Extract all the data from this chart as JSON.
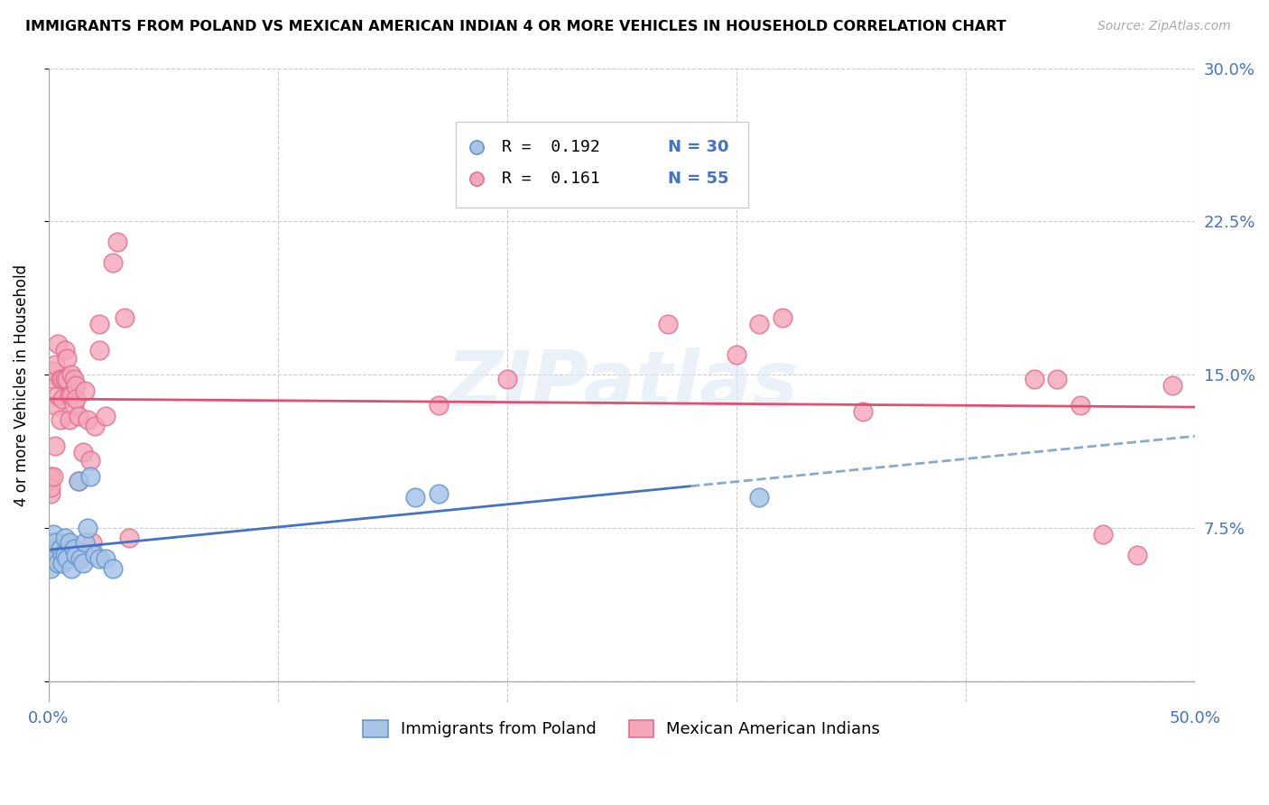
{
  "title": "IMMIGRANTS FROM POLAND VS MEXICAN AMERICAN INDIAN 4 OR MORE VEHICLES IN HOUSEHOLD CORRELATION CHART",
  "source": "Source: ZipAtlas.com",
  "ylabel": "4 or more Vehicles in Household",
  "xlim": [
    0.0,
    0.5
  ],
  "ylim": [
    -0.01,
    0.3
  ],
  "plot_ylim": [
    0.0,
    0.3
  ],
  "xticks": [
    0.0,
    0.1,
    0.2,
    0.3,
    0.4,
    0.5
  ],
  "yticks": [
    0.0,
    0.075,
    0.15,
    0.225,
    0.3
  ],
  "grid_color": "#cccccc",
  "poland_color": "#aac4e8",
  "mexico_color": "#f4a7b9",
  "poland_edge": "#6699cc",
  "mexico_edge": "#e07090",
  "legend_r_poland": "R =  0.192",
  "legend_n_poland": "N = 30",
  "legend_r_mexico": "R =  0.161",
  "legend_n_mexico": "N = 55",
  "line_poland_color": "#4472c4",
  "line_poland_dash_color": "#88aacc",
  "line_mexico_color": "#e05070",
  "watermark": "ZIPatlas",
  "poland_x": [
    0.001,
    0.001,
    0.002,
    0.002,
    0.003,
    0.003,
    0.004,
    0.005,
    0.006,
    0.006,
    0.007,
    0.007,
    0.008,
    0.009,
    0.01,
    0.011,
    0.012,
    0.013,
    0.014,
    0.015,
    0.016,
    0.017,
    0.018,
    0.02,
    0.022,
    0.025,
    0.028,
    0.16,
    0.17,
    0.31
  ],
  "poland_y": [
    0.06,
    0.055,
    0.072,
    0.065,
    0.068,
    0.06,
    0.058,
    0.065,
    0.062,
    0.058,
    0.07,
    0.062,
    0.06,
    0.068,
    0.055,
    0.065,
    0.062,
    0.098,
    0.06,
    0.058,
    0.068,
    0.075,
    0.1,
    0.062,
    0.06,
    0.06,
    0.055,
    0.09,
    0.092,
    0.09
  ],
  "mexico_x": [
    0.001,
    0.001,
    0.001,
    0.002,
    0.002,
    0.002,
    0.003,
    0.003,
    0.003,
    0.004,
    0.004,
    0.005,
    0.005,
    0.006,
    0.006,
    0.007,
    0.007,
    0.008,
    0.008,
    0.009,
    0.009,
    0.01,
    0.01,
    0.011,
    0.011,
    0.012,
    0.012,
    0.013,
    0.013,
    0.015,
    0.016,
    0.017,
    0.018,
    0.019,
    0.02,
    0.022,
    0.022,
    0.025,
    0.028,
    0.03,
    0.033,
    0.035,
    0.17,
    0.2,
    0.27,
    0.3,
    0.31,
    0.32,
    0.355,
    0.43,
    0.44,
    0.45,
    0.46,
    0.475,
    0.49
  ],
  "mexico_y": [
    0.1,
    0.092,
    0.095,
    0.148,
    0.152,
    0.1,
    0.135,
    0.115,
    0.155,
    0.165,
    0.14,
    0.148,
    0.128,
    0.148,
    0.138,
    0.162,
    0.148,
    0.158,
    0.148,
    0.14,
    0.128,
    0.15,
    0.14,
    0.148,
    0.135,
    0.145,
    0.138,
    0.13,
    0.098,
    0.112,
    0.142,
    0.128,
    0.108,
    0.068,
    0.125,
    0.162,
    0.175,
    0.13,
    0.205,
    0.215,
    0.178,
    0.07,
    0.135,
    0.148,
    0.175,
    0.16,
    0.175,
    0.178,
    0.132,
    0.148,
    0.148,
    0.135,
    0.072,
    0.062,
    0.145
  ]
}
